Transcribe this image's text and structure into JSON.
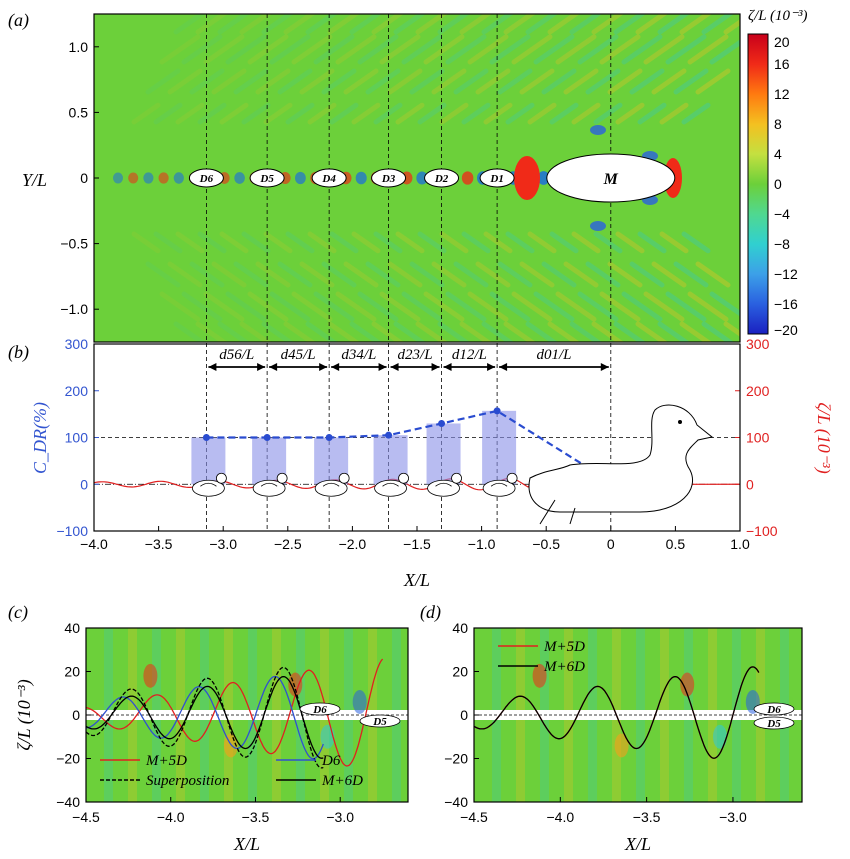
{
  "chart_data": [
    {
      "panel": "(a)",
      "type": "heatmap",
      "xlim": [
        -4.0,
        1.0
      ],
      "ylim": [
        -1.25,
        1.25
      ],
      "ylabel": "Y/L",
      "yticks": [
        "1.0",
        "0.5",
        "0",
        "−0.5",
        "−1.0"
      ],
      "colorbar": {
        "title": "ζ/L (10⁻³)",
        "range": [
          -20,
          20
        ],
        "ticks": [
          "20",
          "16",
          "12",
          "8",
          "4",
          "0",
          "−4",
          "−8",
          "−12",
          "−16",
          "−20"
        ]
      },
      "bodies": [
        {
          "label": "D6",
          "x": -3.13
        },
        {
          "label": "D5",
          "x": -2.66
        },
        {
          "label": "D4",
          "x": -2.18
        },
        {
          "label": "D3",
          "x": -1.72
        },
        {
          "label": "D2",
          "x": -1.31
        },
        {
          "label": "D1",
          "x": -0.88
        },
        {
          "label": "M",
          "x": 0.0
        }
      ]
    },
    {
      "panel": "(b)",
      "type": "bar",
      "xlabel": "X/L",
      "ylabel_left": "C_DR(%)",
      "ylabel_right": "ζ/L (10⁻³)",
      "xlim": [
        -4.0,
        1.0
      ],
      "ylim": [
        -100,
        300
      ],
      "xticks": [
        "−4.0",
        "−3.5",
        "−3.0",
        "−2.5",
        "−2.0",
        "−1.5",
        "−1.0",
        "−0.5",
        "0",
        "0.5",
        "1.0"
      ],
      "yticks": [
        "300",
        "200",
        "100",
        "0",
        "−100"
      ],
      "spacings": [
        "d56/L",
        "d45/L",
        "d34/L",
        "d23/L",
        "d12/L",
        "d01/L"
      ],
      "x": [
        -3.13,
        -2.66,
        -2.18,
        -1.72,
        -1.31,
        -0.88,
        0.0
      ],
      "values": [
        100,
        100,
        100,
        105,
        130,
        157,
        5
      ]
    },
    {
      "panel": "(c)",
      "type": "line",
      "xlabel": "X/L",
      "ylabel": "ζ/L (10⁻³)",
      "xlim": [
        -4.5,
        -2.6
      ],
      "ylim": [
        -40,
        40
      ],
      "xticks": [
        "−4.5",
        "−4.0",
        "−3.5",
        "−3.0"
      ],
      "yticks": [
        "40",
        "20",
        "0",
        "−20",
        "−40"
      ],
      "series": [
        {
          "name": "M+5D",
          "color": "#e02020"
        },
        {
          "name": "D6",
          "color": "#3050d0"
        },
        {
          "name": "Superposition",
          "color": "#000000"
        },
        {
          "name": "M+6D",
          "color": "#000000"
        }
      ],
      "labels": [
        "D6",
        "D5"
      ]
    },
    {
      "panel": "(d)",
      "type": "line",
      "xlabel": "X/L",
      "ylabel": "ζ/L (10⁻³)",
      "xlim": [
        -4.5,
        -2.6
      ],
      "ylim": [
        -40,
        40
      ],
      "xticks": [
        "−4.5",
        "−4.0",
        "−3.5",
        "−3.0"
      ],
      "yticks": [
        "40",
        "20",
        "0",
        "−20",
        "−40"
      ],
      "series": [
        {
          "name": "M+5D",
          "color": "#e02020"
        },
        {
          "name": "M+6D",
          "color": "#000000"
        }
      ],
      "labels": [
        "D6",
        "D5"
      ]
    }
  ]
}
